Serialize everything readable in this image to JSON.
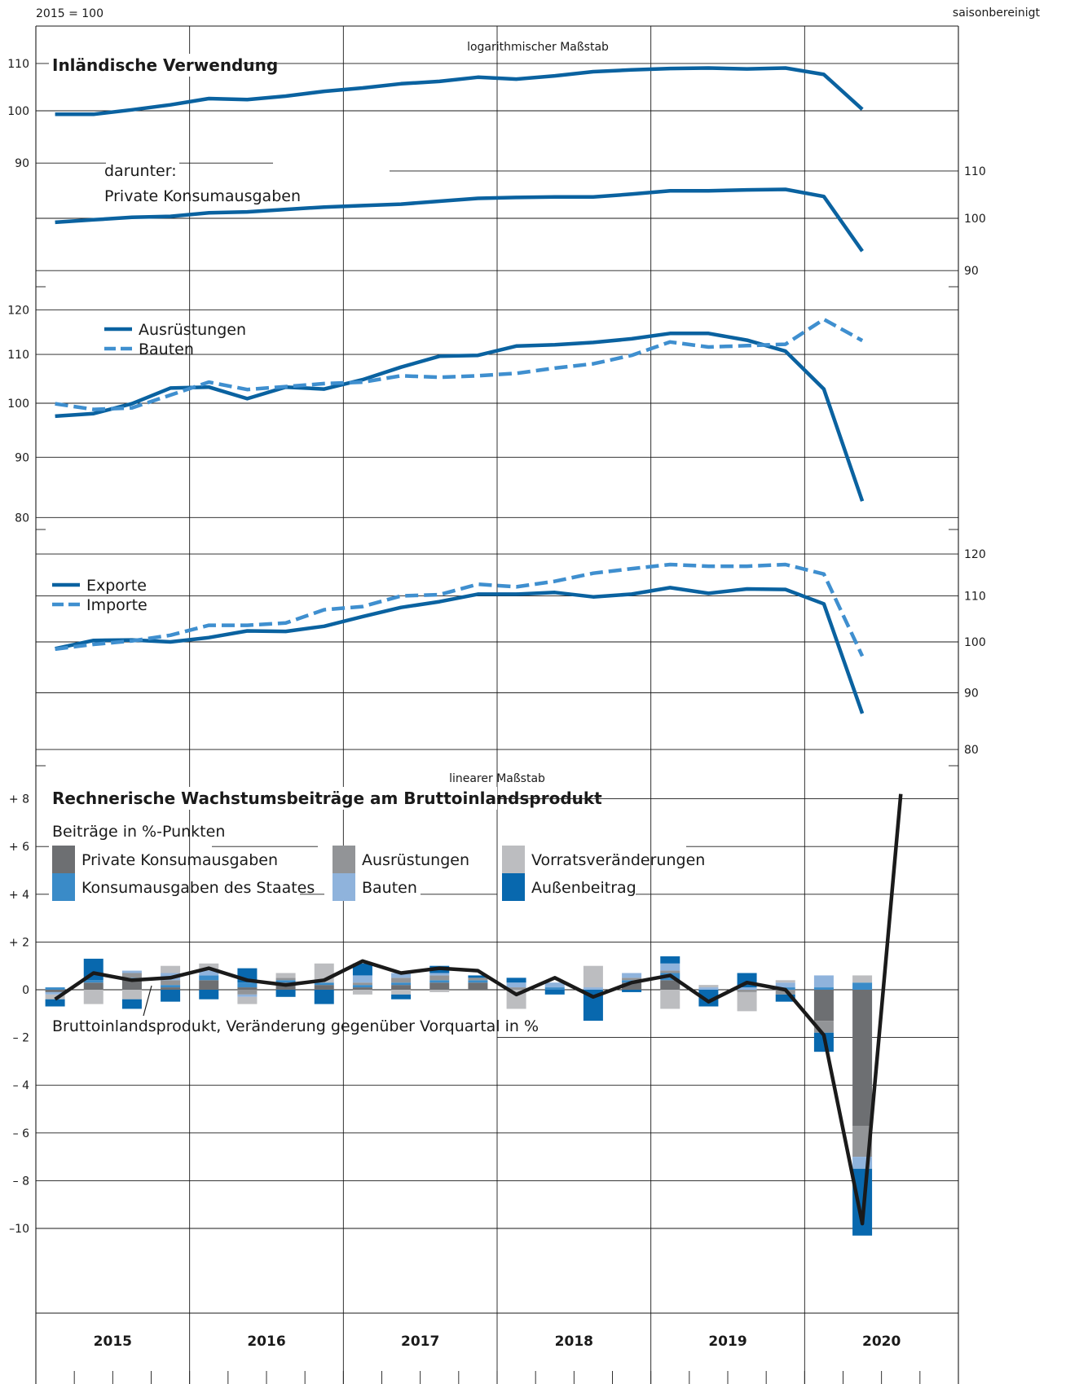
{
  "header": {
    "base_label": "2015 = 100",
    "adjustment_label": "saisonbereinigt"
  },
  "colors": {
    "dark_blue": "#0a62a0",
    "mid_blue": "#3f8fcf",
    "gdp_line": "#1a1a1a",
    "priv_konsum": "#6d6f72",
    "staat_konsum": "#3a8bc8",
    "ausruestungen": "#929497",
    "bauten": "#8fb3dc",
    "vorrat": "#bcbdc0",
    "aussenbeitrag": "#0868ae"
  },
  "chart_data": [
    {
      "type": "line",
      "scale_note": "logarithmischer Maßstab",
      "title": "Inländische Verwendung",
      "yscale": "log",
      "ylim": [
        87,
        114
      ],
      "yticks": [
        "90",
        "100",
        "110"
      ],
      "series": [
        {
          "values": [
            99.3,
            99.3,
            100.2,
            101.2,
            102.5,
            102.3,
            103.0,
            104.0,
            104.7,
            105.6,
            106.1,
            107.0,
            106.6,
            107.3,
            108.2,
            108.6,
            108.9,
            109.0,
            108.8,
            109.0,
            107.6,
            100.3
          ]
        }
      ]
    },
    {
      "type": "line",
      "label_prefix": "darunter:",
      "title": "Private Konsumausgaben",
      "yscale": "log",
      "ylim": [
        87,
        114
      ],
      "yticks": [
        "90",
        "100",
        "110"
      ],
      "series": [
        {
          "values": [
            99.2,
            99.7,
            100.2,
            100.4,
            101.1,
            101.3,
            101.8,
            102.3,
            102.6,
            102.9,
            103.5,
            104.1,
            104.3,
            104.4,
            104.4,
            105.0,
            105.7,
            105.7,
            105.9,
            106.0,
            104.5,
            93.6
          ]
        }
      ]
    },
    {
      "type": "line",
      "yscale": "log",
      "ylim": [
        77,
        124
      ],
      "yticks": [
        "80",
        "90",
        "100",
        "110",
        "120"
      ],
      "series": [
        {
          "name": "Ausrüstungen",
          "style": "solid",
          "values": [
            97.5,
            98.0,
            99.9,
            103.0,
            103.2,
            100.9,
            103.2,
            102.8,
            104.7,
            107.3,
            109.6,
            109.8,
            111.8,
            112.1,
            112.6,
            113.4,
            114.6,
            114.6,
            113.1,
            110.7,
            102.8,
            82.6
          ]
        },
        {
          "name": "Bauten",
          "style": "dashed",
          "values": [
            99.9,
            98.8,
            99.1,
            101.6,
            104.2,
            102.7,
            103.3,
            103.9,
            104.2,
            105.5,
            105.2,
            105.5,
            106.0,
            107.1,
            108.0,
            109.8,
            112.7,
            111.6,
            111.9,
            112.2,
            117.8,
            113.0
          ]
        }
      ]
    },
    {
      "type": "line",
      "yscale": "log",
      "ylim": [
        77,
        124
      ],
      "yticks": [
        "80",
        "90",
        "100",
        "110",
        "120"
      ],
      "series": [
        {
          "name": "Exporte",
          "style": "solid",
          "values": [
            98.6,
            100.3,
            100.4,
            100.0,
            100.9,
            102.3,
            102.2,
            103.3,
            105.4,
            107.4,
            108.7,
            110.4,
            110.4,
            110.8,
            109.8,
            110.4,
            111.9,
            110.6,
            111.6,
            111.5,
            108.2,
            86.2
          ]
        },
        {
          "name": "Importe",
          "style": "dashed",
          "values": [
            98.5,
            99.5,
            100.2,
            101.4,
            103.5,
            103.5,
            104.0,
            106.9,
            107.6,
            110.0,
            110.3,
            112.7,
            112.1,
            113.4,
            115.3,
            116.4,
            117.4,
            117.0,
            117.0,
            117.4,
            115.1,
            97.1
          ]
        }
      ]
    },
    {
      "type": "bar",
      "stacked": true,
      "scale_note": "linearer Maßstab",
      "title": "Rechnerische Wachstumsbeiträge am Bruttoinlandsprodukt",
      "subtitle": "Beiträge in %-Punkten",
      "ylim": [
        -11,
        9
      ],
      "yticks": [
        "+ 8",
        "+ 6",
        "+ 4",
        "+ 2",
        "0",
        "– 2",
        "– 4",
        "– 6",
        "– 8",
        "–10"
      ],
      "categories": [
        "2015 Q1",
        "2015 Q2",
        "2015 Q3",
        "2015 Q4",
        "2016 Q1",
        "2016 Q2",
        "2016 Q3",
        "2016 Q4",
        "2017 Q1",
        "2017 Q2",
        "2017 Q3",
        "2017 Q4",
        "2018 Q1",
        "2018 Q2",
        "2018 Q3",
        "2018 Q4",
        "2019 Q1",
        "2019 Q2",
        "2019 Q3",
        "2019 Q4",
        "2020 Q1",
        "2020 Q2",
        "2020 Q3"
      ],
      "series": [
        {
          "name": "Private Konsumausgaben",
          "values": [
            -0.1,
            0.3,
            0.4,
            0.1,
            0.4,
            0.1,
            0.3,
            0.2,
            0.1,
            0.2,
            0.3,
            0.3,
            0.0,
            0.0,
            0.0,
            0.3,
            0.4,
            0.0,
            0.0,
            0.0,
            -1.3,
            -5.7,
            0
          ]
        },
        {
          "name": "Konsumausgaben des Staates",
          "values": [
            0.1,
            0.1,
            0.1,
            0.1,
            0.2,
            0.2,
            0.1,
            0.1,
            0.1,
            0.1,
            0.1,
            0.1,
            0.0,
            0.1,
            0.0,
            0.1,
            0.3,
            0.0,
            0.0,
            0.1,
            0.1,
            0.3,
            0
          ]
        },
        {
          "name": "Ausrüstungen",
          "values": [
            0.0,
            0.0,
            0.2,
            0.2,
            0.0,
            -0.2,
            0.1,
            0.0,
            0.1,
            0.2,
            0.2,
            0.1,
            0.1,
            0.0,
            0.0,
            0.1,
            0.1,
            0.0,
            -0.1,
            -0.2,
            -0.5,
            -1.3,
            0
          ]
        },
        {
          "name": "Bauten",
          "values": [
            -0.1,
            0.0,
            0.1,
            0.3,
            0.2,
            -0.1,
            0.0,
            0.0,
            0.3,
            0.2,
            0.1,
            0.0,
            0.2,
            0.2,
            0.1,
            0.2,
            0.3,
            0.1,
            0.1,
            0.2,
            0.5,
            -0.5,
            0
          ]
        },
        {
          "name": "Vorratsveränderungen",
          "values": [
            -0.2,
            -0.6,
            -0.4,
            0.3,
            0.3,
            -0.3,
            0.2,
            0.8,
            -0.2,
            -0.2,
            -0.1,
            0.0,
            -0.8,
            0.0,
            0.9,
            0.0,
            -0.8,
            0.1,
            -0.8,
            0.1,
            0.0,
            0.3,
            0
          ]
        },
        {
          "name": "Außenbeitrag",
          "values": [
            -0.3,
            0.9,
            -0.4,
            -0.5,
            -0.4,
            0.6,
            -0.3,
            -0.6,
            0.5,
            -0.2,
            0.3,
            0.1,
            0.2,
            -0.2,
            -1.3,
            -0.1,
            0.3,
            -0.7,
            0.6,
            -0.3,
            -0.8,
            -2.8,
            0
          ]
        }
      ],
      "line_series": {
        "name": "Bruttoinlandsprodukt, Veränderung gegenüber Vorquartal in %",
        "values": [
          -0.4,
          0.7,
          0.4,
          0.5,
          0.9,
          0.4,
          0.2,
          0.4,
          1.2,
          0.7,
          0.9,
          0.8,
          -0.2,
          0.5,
          -0.3,
          0.3,
          0.6,
          -0.5,
          0.3,
          0.0,
          -1.9,
          -9.8,
          8.2
        ]
      }
    }
  ],
  "x_axis": {
    "years": [
      "2015",
      "2016",
      "2017",
      "2018",
      "2019",
      "2020"
    ]
  }
}
